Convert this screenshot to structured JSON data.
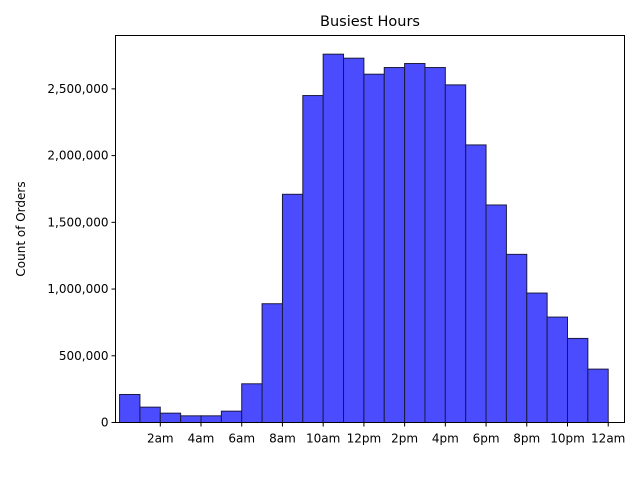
{
  "chart_data": {
    "type": "bar",
    "title": "Busiest Hours",
    "xlabel": "",
    "ylabel": "Count of Orders",
    "bar_color": "#4c4cff",
    "edge_color": "#1a1a40",
    "grid": false,
    "legend": "none",
    "x_domain": [
      -0.2,
      24.8
    ],
    "ylim": [
      0,
      2900000
    ],
    "bins": [
      {
        "hour": 0,
        "value": 210000
      },
      {
        "hour": 1,
        "value": 115000
      },
      {
        "hour": 2,
        "value": 70000
      },
      {
        "hour": 3,
        "value": 50000
      },
      {
        "hour": 4,
        "value": 50000
      },
      {
        "hour": 5,
        "value": 85000
      },
      {
        "hour": 6,
        "value": 290000
      },
      {
        "hour": 7,
        "value": 890000
      },
      {
        "hour": 8,
        "value": 1710000
      },
      {
        "hour": 9,
        "value": 2450000
      },
      {
        "hour": 10,
        "value": 2760000
      },
      {
        "hour": 11,
        "value": 2730000
      },
      {
        "hour": 12,
        "value": 2610000
      },
      {
        "hour": 13,
        "value": 2660000
      },
      {
        "hour": 14,
        "value": 2690000
      },
      {
        "hour": 15,
        "value": 2660000
      },
      {
        "hour": 16,
        "value": 2530000
      },
      {
        "hour": 17,
        "value": 2080000
      },
      {
        "hour": 18,
        "value": 1630000
      },
      {
        "hour": 19,
        "value": 1260000
      },
      {
        "hour": 20,
        "value": 970000
      },
      {
        "hour": 21,
        "value": 790000
      },
      {
        "hour": 22,
        "value": 630000
      },
      {
        "hour": 23,
        "value": 400000
      }
    ],
    "x_ticks": [
      {
        "value": 2,
        "label": "2am"
      },
      {
        "value": 4,
        "label": "4am"
      },
      {
        "value": 6,
        "label": "6am"
      },
      {
        "value": 8,
        "label": "8am"
      },
      {
        "value": 10,
        "label": "10am"
      },
      {
        "value": 12,
        "label": "12pm"
      },
      {
        "value": 14,
        "label": "2pm"
      },
      {
        "value": 16,
        "label": "4pm"
      },
      {
        "value": 18,
        "label": "6pm"
      },
      {
        "value": 20,
        "label": "8pm"
      },
      {
        "value": 22,
        "label": "10pm"
      },
      {
        "value": 24,
        "label": "12am"
      }
    ],
    "y_ticks": [
      {
        "value": 0,
        "label": "0"
      },
      {
        "value": 500000,
        "label": "500,000"
      },
      {
        "value": 1000000,
        "label": "1,000,000"
      },
      {
        "value": 1500000,
        "label": "1,500,000"
      },
      {
        "value": 2000000,
        "label": "2,000,000"
      },
      {
        "value": 2500000,
        "label": "2,500,000"
      }
    ]
  }
}
